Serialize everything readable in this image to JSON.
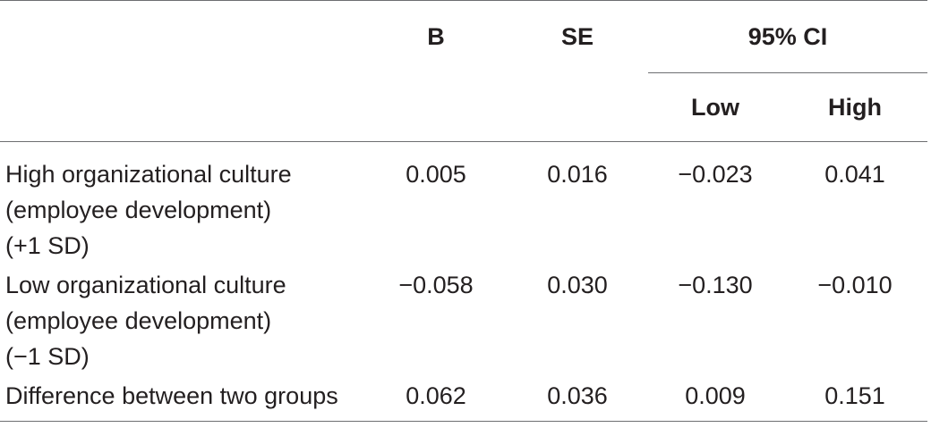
{
  "table": {
    "header_row1": {
      "stub": "",
      "b": "B",
      "se": "SE",
      "ci": "95% CI"
    },
    "header_row2": {
      "low": "Low",
      "high": "High"
    },
    "rows": [
      {
        "label_lines": [
          "High organizational culture",
          "(employee development)",
          "(+1 SD)"
        ],
        "b": "0.005",
        "se": "0.016",
        "low": "−0.023",
        "high": "0.041"
      },
      {
        "label_lines": [
          "Low organizational culture",
          "(employee development)",
          "(−1 SD)"
        ],
        "b": "−0.058",
        "se": "0.030",
        "low": "−0.130",
        "high": "−0.010"
      },
      {
        "label_lines": [
          "Difference between two groups"
        ],
        "b": "0.062",
        "se": "0.036",
        "low": "0.009",
        "high": "0.151"
      }
    ]
  }
}
